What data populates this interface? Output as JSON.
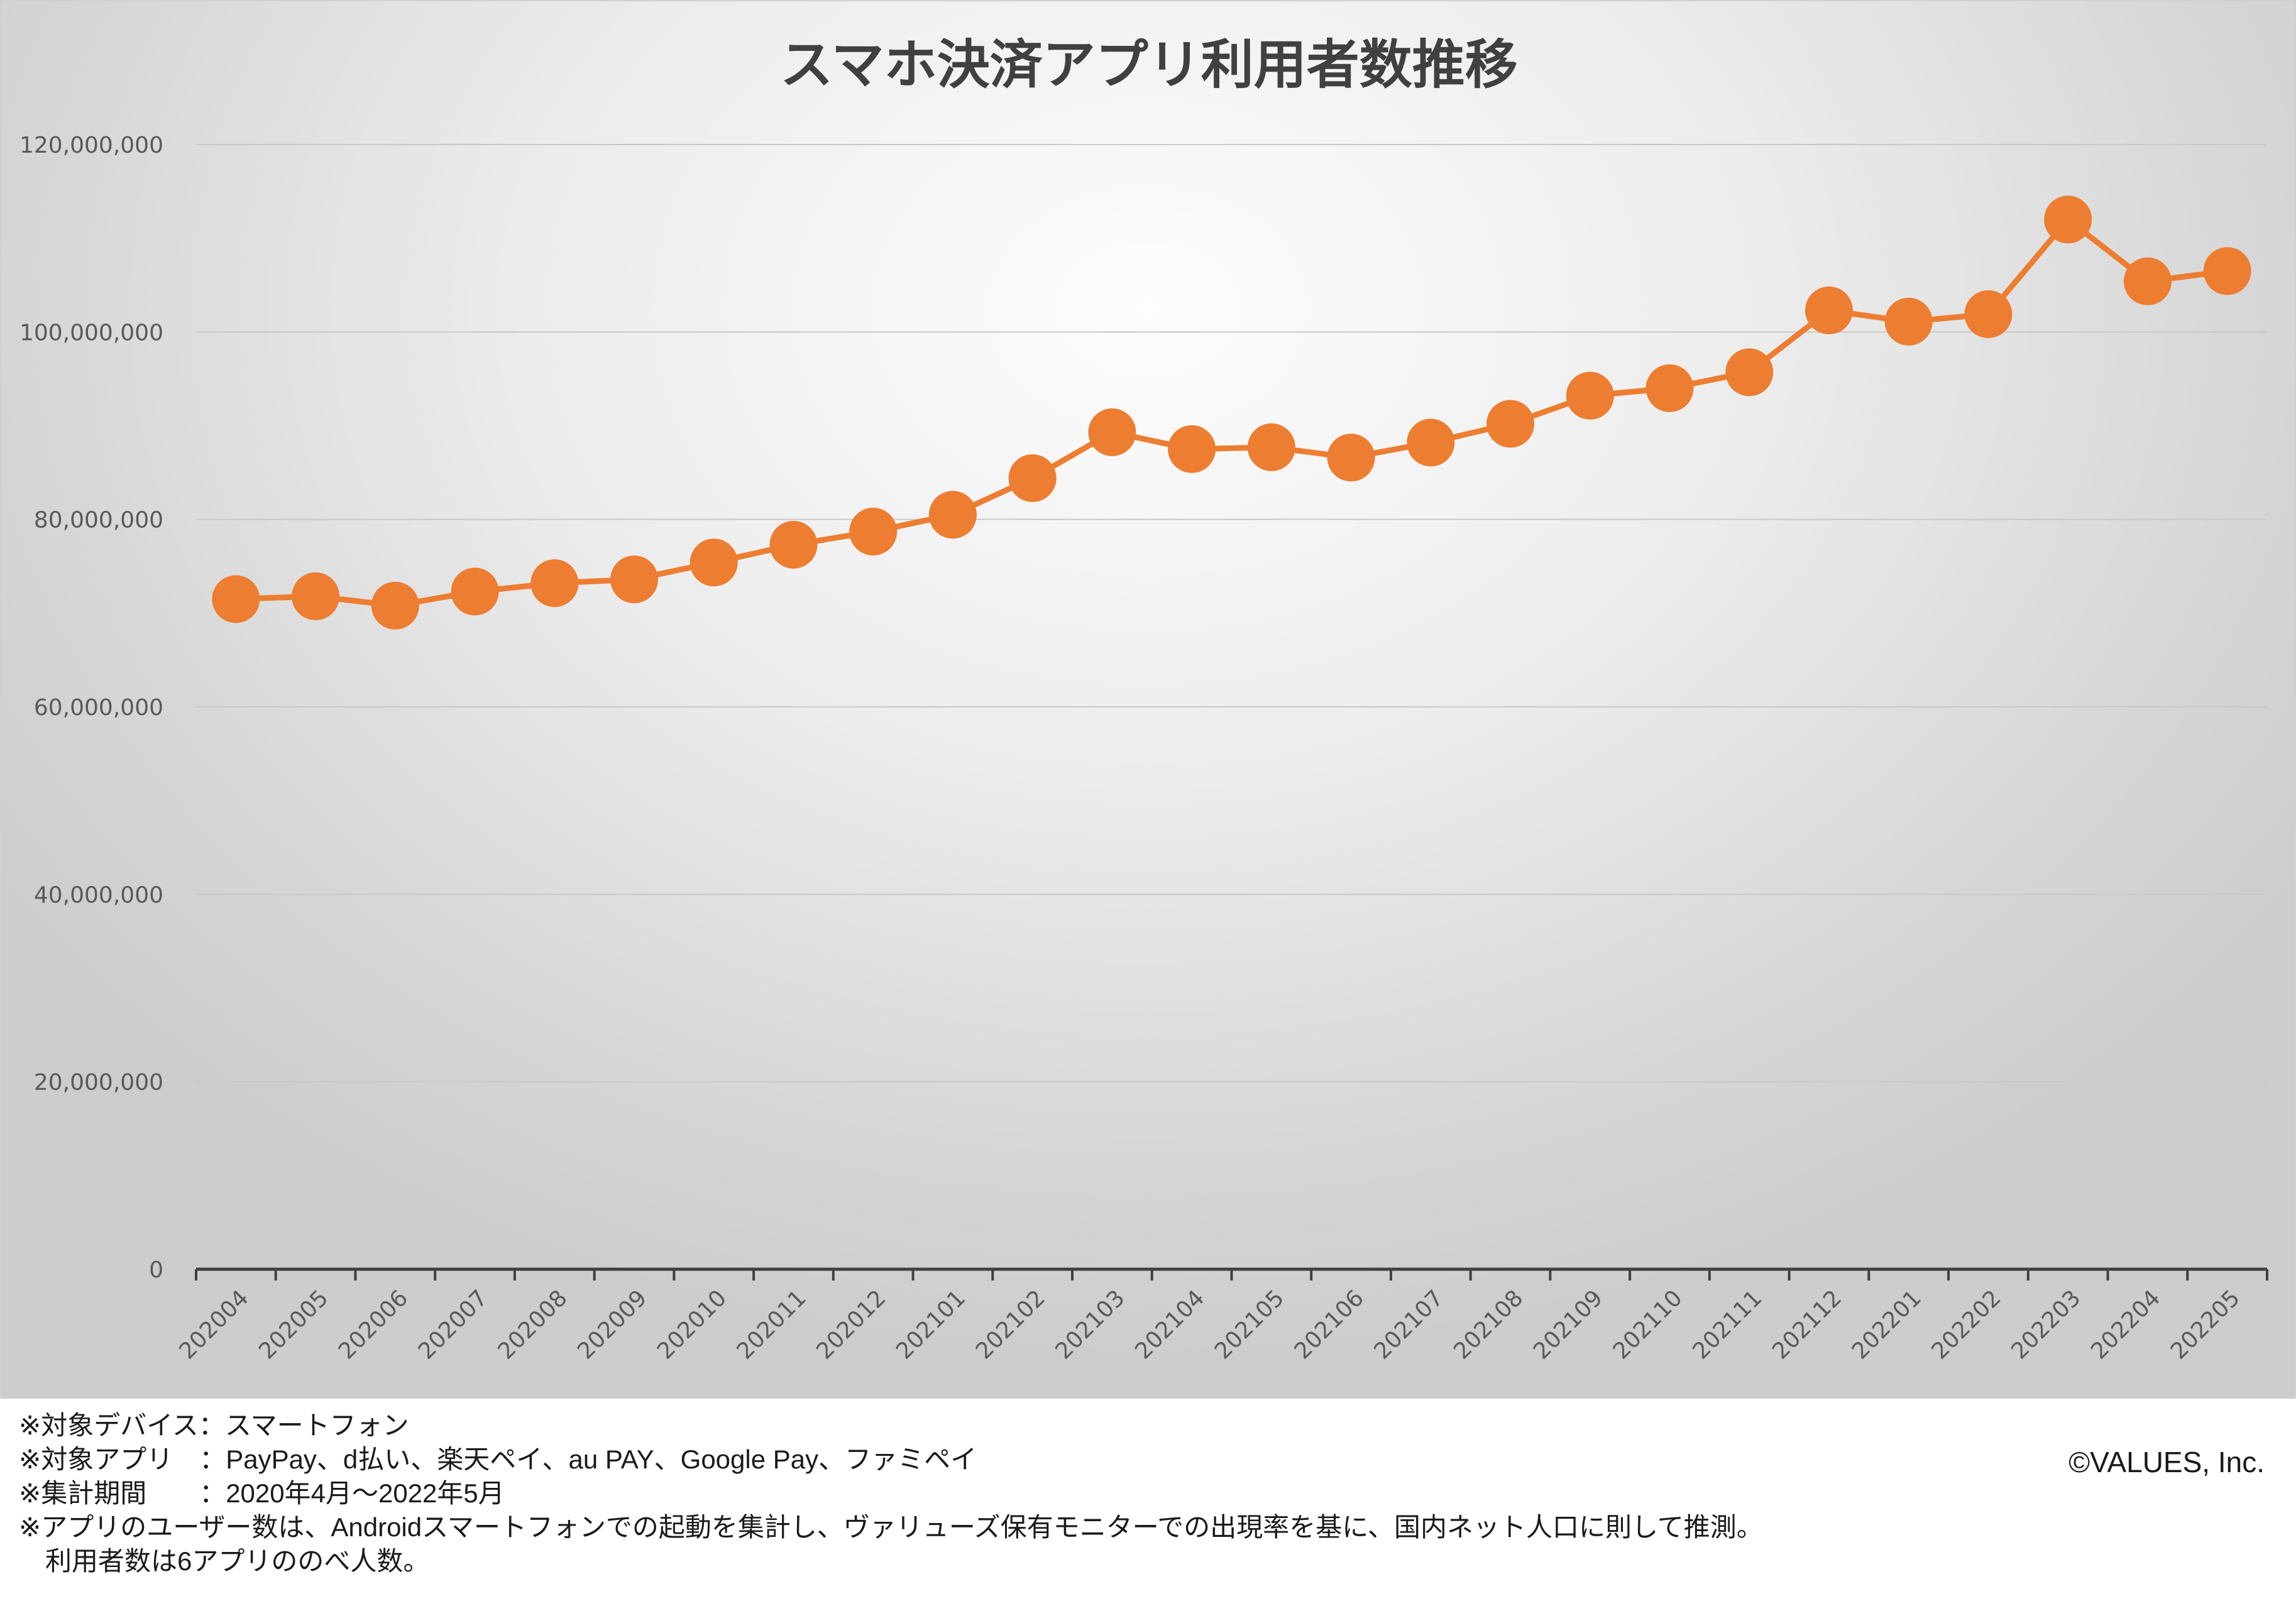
{
  "chart_data": {
    "type": "line",
    "title": "スマホ決済アプリ利用者数推移",
    "xlabel": "",
    "ylabel": "",
    "ylim": [
      0,
      120000000
    ],
    "yticks": [
      "0",
      "20,000,000",
      "40,000,000",
      "60,000,000",
      "80,000,000",
      "100,000,000",
      "120,000,000"
    ],
    "ytick_values": [
      0,
      20000000,
      40000000,
      60000000,
      80000000,
      100000000,
      120000000
    ],
    "categories": [
      "202004",
      "202005",
      "202006",
      "202007",
      "202008",
      "202009",
      "202010",
      "202011",
      "202012",
      "202101",
      "202102",
      "202103",
      "202104",
      "202105",
      "202106",
      "202107",
      "202108",
      "202109",
      "202110",
      "202111",
      "202112",
      "202201",
      "202202",
      "202203",
      "202204",
      "202205"
    ],
    "series": [
      {
        "name": "利用者数",
        "color": "#ED7D31",
        "values": [
          71500000,
          71800000,
          70800000,
          72300000,
          73200000,
          73600000,
          75400000,
          77300000,
          78700000,
          80500000,
          84400000,
          89300000,
          87500000,
          87700000,
          86600000,
          88200000,
          90200000,
          93200000,
          94000000,
          95700000,
          102300000,
          101100000,
          101900000,
          112000000,
          105400000,
          106500000
        ]
      }
    ],
    "grid": true,
    "legend": "none"
  },
  "notes": [
    "※対象デバイス：スマートフォン",
    "※対象アプリ　：PayPay、d払い、楽天ペイ、au PAY、Google Pay、ファミペイ",
    "※集計期間　　：2020年4月〜2022年5月",
    "※アプリのユーザー数は、Androidスマートフォンでの起動を集計し、ヴァリューズ保有モニターでの出現率を基に、国内ネット人口に則して推測。",
    "　利用者数は6アプリののべ人数。"
  ],
  "copyright": "©VALUES, Inc."
}
